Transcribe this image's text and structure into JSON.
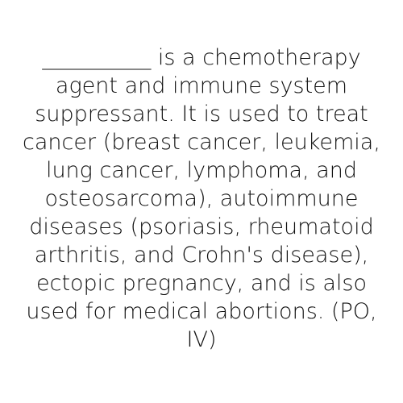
{
  "card": {
    "lines": [
      "__________ is a chemotherapy",
      "agent and immune system",
      "suppressant. It is used to treat",
      "cancer (breast cancer, leukemia,",
      "lung cancer, lymphoma, and",
      "osteosarcoma), autoimmune",
      "diseases (psoriasis, rheumatoid",
      "arthritis, and Crohn's disease),",
      "ectopic pregnancy, and is also",
      "used for medical abortions. (PO,",
      "IV)"
    ]
  }
}
